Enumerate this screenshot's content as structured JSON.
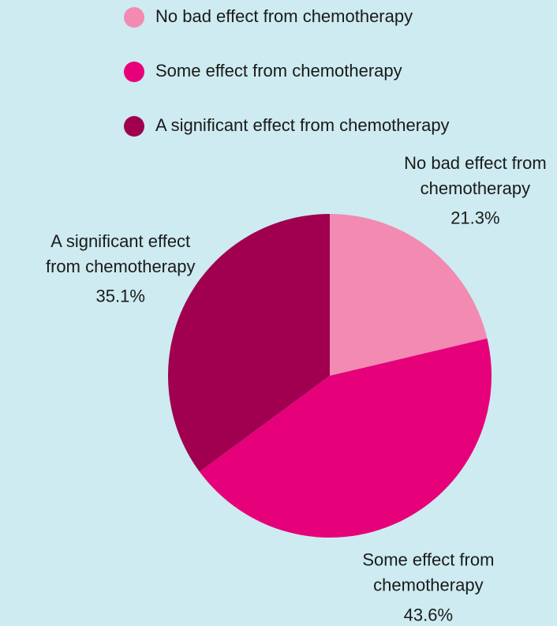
{
  "chart_data": {
    "type": "pie",
    "categories": [
      "No bad effect from chemotherapy",
      "Some effect from chemotherapy",
      "A significant effect from chemotherapy"
    ],
    "values": [
      21.3,
      43.6,
      35.1
    ],
    "value_labels": [
      "21.3%",
      "43.6%",
      "35.1%"
    ],
    "colors": [
      "#f28ab2",
      "#e6007a",
      "#a0004f"
    ],
    "legend": "top"
  }
}
